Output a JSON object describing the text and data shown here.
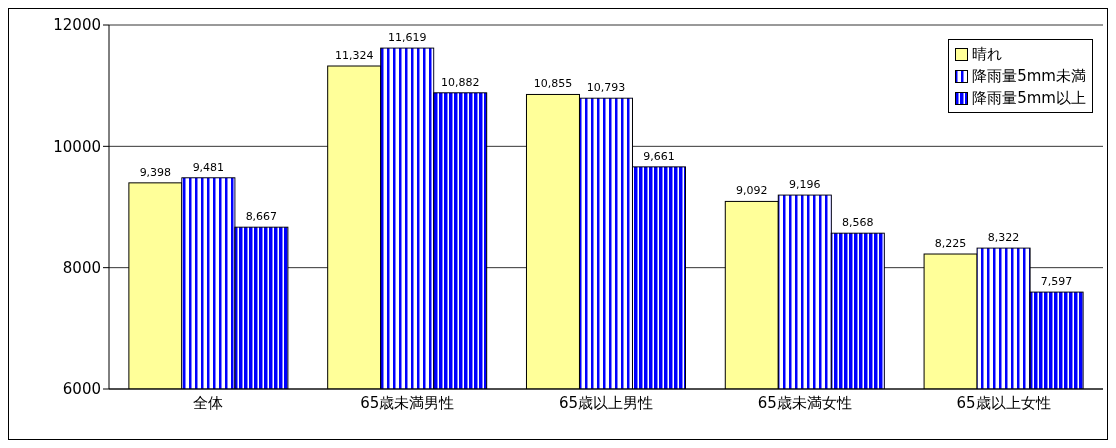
{
  "chart_data": {
    "type": "bar",
    "categories": [
      "全体",
      "65歳未満男性",
      "65歳以上男性",
      "65歳未満女性",
      "65歳以上女性"
    ],
    "series": [
      {
        "name": "晴れ",
        "color": "#ffff99",
        "values": [
          9398,
          11324,
          10855,
          9092,
          8225
        ],
        "value_labels": [
          "9,398",
          "11,324",
          "10,855",
          "9,092",
          "8,225"
        ]
      },
      {
        "name": "降雨量5mm未満",
        "color": "#0000ff",
        "values": [
          9481,
          11619,
          10793,
          9196,
          8322
        ],
        "value_labels": [
          "9,481",
          "11,619",
          "10,793",
          "9,196",
          "8,322"
        ]
      },
      {
        "name": "降雨量5mm以上",
        "color": "#0000ff",
        "values": [
          8667,
          10882,
          9661,
          8568,
          7597
        ],
        "value_labels": [
          "8,667",
          "10,882",
          "9,661",
          "8,568",
          "7,597"
        ]
      }
    ],
    "ylim": [
      6000,
      12000
    ],
    "yticks": [
      6000,
      8000,
      10000,
      12000
    ],
    "grid": "y",
    "legend": "top right"
  }
}
